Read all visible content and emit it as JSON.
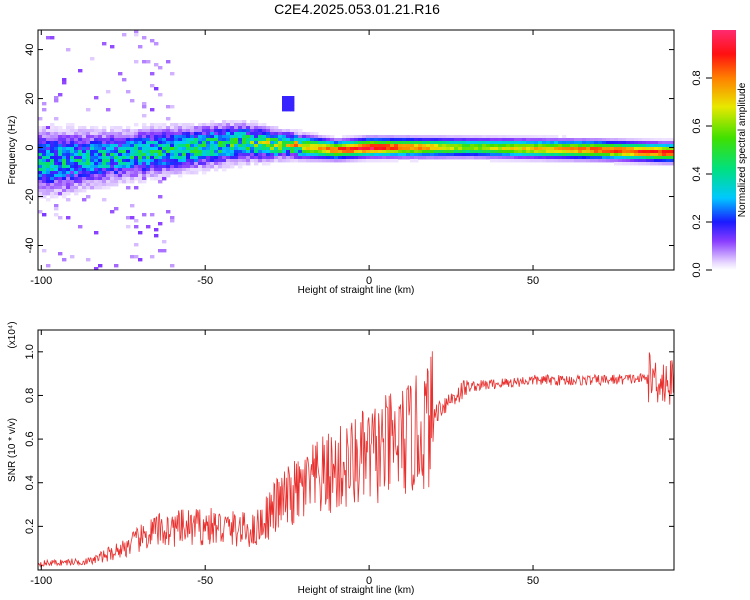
{
  "title": "C2E4.2025.053.01.21.R16",
  "chart_data": [
    {
      "type": "heatmap",
      "xlabel": "Height of straight line (km)",
      "ylabel": "Frequency (Hz)",
      "xlim": [
        -101,
        93
      ],
      "ylim": [
        -50,
        48
      ],
      "xticks": [
        "-100",
        "-50",
        "0",
        "50"
      ],
      "yticks": [
        "-40",
        "-20",
        "0",
        "20",
        "40"
      ],
      "colorbar": {
        "label": "Normalized spectral amplitude",
        "range": [
          0,
          1
        ],
        "ticks": [
          "0.0",
          "0.2",
          "0.4",
          "0.6",
          "0.8"
        ]
      },
      "ridge": [
        {
          "x": -100,
          "f": -6,
          "amp": 0.35,
          "spread": 10
        },
        {
          "x": -80,
          "f": -4,
          "amp": 0.35,
          "spread": 8
        },
        {
          "x": -60,
          "f": -1,
          "amp": 0.4,
          "spread": 7
        },
        {
          "x": -40,
          "f": 2,
          "amp": 0.45,
          "spread": 6
        },
        {
          "x": -25,
          "f": 1,
          "amp": 0.6,
          "spread": 4
        },
        {
          "x": -10,
          "f": -1,
          "amp": 0.85,
          "spread": 3
        },
        {
          "x": 0,
          "f": 0,
          "amp": 1.0,
          "spread": 3
        },
        {
          "x": 30,
          "f": 0,
          "amp": 0.6,
          "spread": 3
        },
        {
          "x": 70,
          "f": -1,
          "amp": 0.85,
          "spread": 3
        },
        {
          "x": 90,
          "f": -2,
          "amp": 0.9,
          "spread": 3
        }
      ]
    },
    {
      "type": "line",
      "xlabel": "Height of straight line (km)",
      "ylabel": "SNR (10 * v/v)",
      "yscale_label": "(x10⁴)",
      "xlim": [
        -101,
        93
      ],
      "ylim": [
        0,
        1.1
      ],
      "xticks": [
        "-100",
        "-50",
        "0",
        "50"
      ],
      "yticks": [
        "0.2",
        "0.4",
        "0.6",
        "0.8",
        "1.0"
      ],
      "color": "#e8302e",
      "trend": [
        {
          "x": -101,
          "y": 0.03
        },
        {
          "x": -85,
          "y": 0.04
        },
        {
          "x": -75,
          "y": 0.1
        },
        {
          "x": -65,
          "y": 0.18
        },
        {
          "x": -50,
          "y": 0.2
        },
        {
          "x": -35,
          "y": 0.18
        },
        {
          "x": -28,
          "y": 0.3
        },
        {
          "x": -15,
          "y": 0.42
        },
        {
          "x": 0,
          "y": 0.52
        },
        {
          "x": 15,
          "y": 0.62
        },
        {
          "x": 22,
          "y": 0.75
        },
        {
          "x": 30,
          "y": 0.84
        },
        {
          "x": 50,
          "y": 0.87
        },
        {
          "x": 70,
          "y": 0.87
        },
        {
          "x": 88,
          "y": 0.88
        },
        {
          "x": 93,
          "y": 0.85
        }
      ]
    }
  ]
}
